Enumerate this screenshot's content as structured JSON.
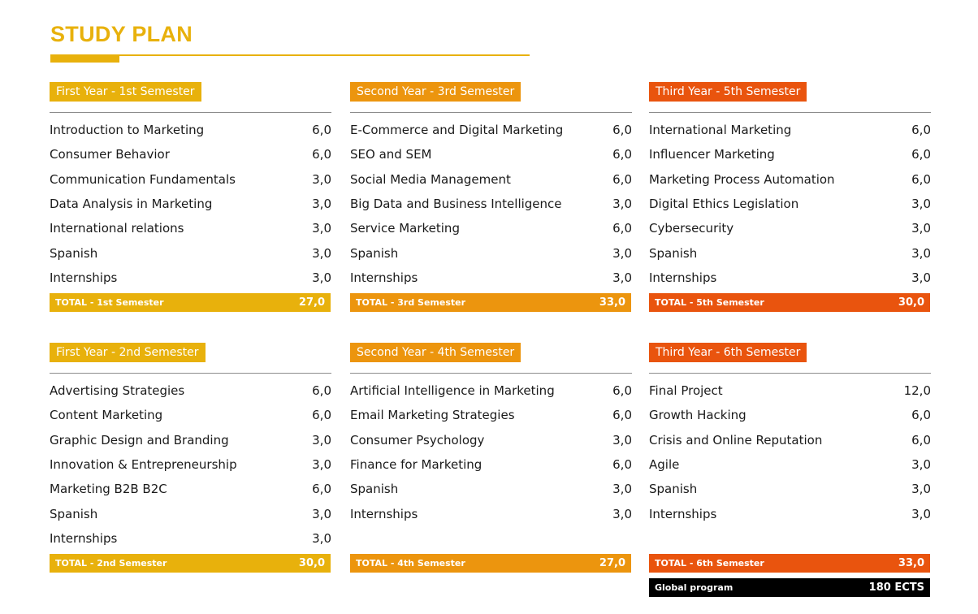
{
  "title": "STUDY PLAN",
  "colors": {
    "first_year": "#e8b10c",
    "second_year": "#ec950e",
    "third_year": "#e9540e",
    "global": "#000000"
  },
  "semesters": [
    {
      "title": "First Year - 1st Semester",
      "courses": [
        {
          "name": "Introduction to Marketing",
          "credits": "6,0"
        },
        {
          "name": "Consumer Behavior",
          "credits": "6,0"
        },
        {
          "name": "Communication Fundamentals",
          "credits": "3,0"
        },
        {
          "name": "Data Analysis in Marketing",
          "credits": "3,0"
        },
        {
          "name": "International relations",
          "credits": "3,0"
        },
        {
          "name": "Spanish",
          "credits": "3,0"
        },
        {
          "name": "Internships",
          "credits": "3,0"
        }
      ],
      "total_label": "TOTAL - 1st Semester",
      "total_value": "27,0"
    },
    {
      "title": "Second Year - 3rd Semester",
      "courses": [
        {
          "name": "E-Commerce and Digital Marketing",
          "credits": "6,0"
        },
        {
          "name": "SEO and SEM",
          "credits": "6,0"
        },
        {
          "name": "Social Media Management",
          "credits": "6,0"
        },
        {
          "name": "Big Data and Business Intelligence",
          "credits": "3,0"
        },
        {
          "name": "Service Marketing",
          "credits": "6,0"
        },
        {
          "name": "Spanish",
          "credits": "3,0"
        },
        {
          "name": "Internships",
          "credits": "3,0"
        }
      ],
      "total_label": "TOTAL - 3rd Semester",
      "total_value": "33,0"
    },
    {
      "title": "Third Year - 5th Semester",
      "courses": [
        {
          "name": "International Marketing",
          "credits": "6,0"
        },
        {
          "name": "Influencer Marketing",
          "credits": "6,0"
        },
        {
          "name": "Marketing Process Automation",
          "credits": "6,0"
        },
        {
          "name": "Digital Ethics Legislation",
          "credits": "3,0"
        },
        {
          "name": "Cybersecurity",
          "credits": "3,0"
        },
        {
          "name": "Spanish",
          "credits": "3,0"
        },
        {
          "name": "Internships",
          "credits": "3,0"
        }
      ],
      "total_label": "TOTAL - 5th Semester",
      "total_value": "30,0"
    },
    {
      "title": "First Year - 2nd Semester",
      "courses": [
        {
          "name": "Advertising Strategies",
          "credits": "6,0"
        },
        {
          "name": "Content Marketing",
          "credits": "6,0"
        },
        {
          "name": "Graphic Design and Branding",
          "credits": "3,0"
        },
        {
          "name": "Innovation & Entrepreneurship",
          "credits": "3,0"
        },
        {
          "name": "Marketing B2B B2C",
          "credits": "6,0"
        },
        {
          "name": "Spanish",
          "credits": "3,0"
        },
        {
          "name": "Internships",
          "credits": "3,0"
        }
      ],
      "total_label": "TOTAL - 2nd Semester",
      "total_value": "30,0"
    },
    {
      "title": "Second Year - 4th Semester",
      "courses": [
        {
          "name": "Artificial Intelligence in Marketing",
          "credits": "6,0"
        },
        {
          "name": "Email Marketing Strategies",
          "credits": "6,0"
        },
        {
          "name": "Consumer Psychology",
          "credits": "3,0"
        },
        {
          "name": "Finance for Marketing",
          "credits": "6,0"
        },
        {
          "name": "Spanish",
          "credits": "3,0"
        },
        {
          "name": "Internships",
          "credits": "3,0"
        }
      ],
      "total_label": "TOTAL - 4th Semester",
      "total_value": "27,0"
    },
    {
      "title": "Third Year - 6th Semester",
      "courses": [
        {
          "name": "Final Project",
          "credits": "12,0"
        },
        {
          "name": "Growth Hacking",
          "credits": "6,0"
        },
        {
          "name": "Crisis and Online Reputation",
          "credits": "6,0"
        },
        {
          "name": "Agile",
          "credits": "3,0"
        },
        {
          "name": "Spanish",
          "credits": "3,0"
        },
        {
          "name": "Internships",
          "credits": "3,0"
        }
      ],
      "total_label": "TOTAL - 6th Semester",
      "total_value": "33,0"
    }
  ],
  "global": {
    "label": "Global program",
    "value": "180 ECTS"
  }
}
